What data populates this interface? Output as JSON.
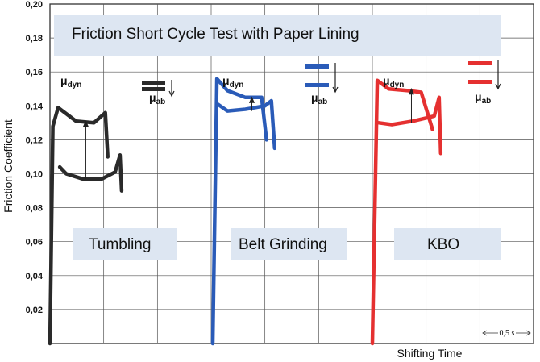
{
  "chart_data": {
    "type": "line",
    "title": "Friction Short Cycle Test with Paper Lining",
    "xlabel": "Shifting Time",
    "ylabel": "Friction Coefficient",
    "ylim": [
      0,
      0.2
    ],
    "yticks": [
      "0,20",
      "0,18",
      "0,16",
      "0,14",
      "0,12",
      "0,10",
      "0,08",
      "0,06",
      "0,04",
      "0,02"
    ],
    "grid": true,
    "time_scale_label": "0,5 s",
    "legend_symbols": {
      "dyn": "μdyn",
      "ab": "μab"
    },
    "series": [
      {
        "name": "Tumbling",
        "color": "#2a2a2a",
        "mu_dyn": 0.131,
        "mu_ab": 0.097,
        "upper": [
          [
            0.0,
            0.0
          ],
          [
            0.018,
            0.128
          ],
          [
            0.05,
            0.139
          ],
          [
            0.16,
            0.131
          ],
          [
            0.27,
            0.13
          ],
          [
            0.34,
            0.136
          ],
          [
            0.355,
            0.11
          ]
        ],
        "lower": [
          [
            0.06,
            0.104
          ],
          [
            0.1,
            0.1
          ],
          [
            0.2,
            0.097
          ],
          [
            0.32,
            0.097
          ],
          [
            0.4,
            0.101
          ],
          [
            0.43,
            0.111
          ],
          [
            0.44,
            0.09
          ]
        ]
      },
      {
        "name": "Belt Grinding",
        "color": "#2a5bb8",
        "mu_dyn": 0.145,
        "mu_ab": 0.137,
        "upper": [
          [
            0.0,
            0.0
          ],
          [
            0.025,
            0.156
          ],
          [
            0.09,
            0.149
          ],
          [
            0.2,
            0.145
          ],
          [
            0.3,
            0.145
          ],
          [
            0.33,
            0.12
          ]
        ],
        "lower": [
          [
            0.03,
            0.141
          ],
          [
            0.09,
            0.137
          ],
          [
            0.2,
            0.138
          ],
          [
            0.32,
            0.14
          ],
          [
            0.36,
            0.143
          ],
          [
            0.38,
            0.115
          ]
        ]
      },
      {
        "name": "KBO",
        "color": "#e53030",
        "mu_dyn": 0.15,
        "mu_ab": 0.13,
        "upper": [
          [
            0.0,
            0.0
          ],
          [
            0.03,
            0.155
          ],
          [
            0.1,
            0.15
          ],
          [
            0.22,
            0.149
          ],
          [
            0.3,
            0.148
          ],
          [
            0.37,
            0.126
          ]
        ],
        "lower": [
          [
            0.04,
            0.13
          ],
          [
            0.12,
            0.129
          ],
          [
            0.25,
            0.131
          ],
          [
            0.38,
            0.134
          ],
          [
            0.41,
            0.145
          ],
          [
            0.42,
            0.112
          ]
        ]
      }
    ]
  }
}
